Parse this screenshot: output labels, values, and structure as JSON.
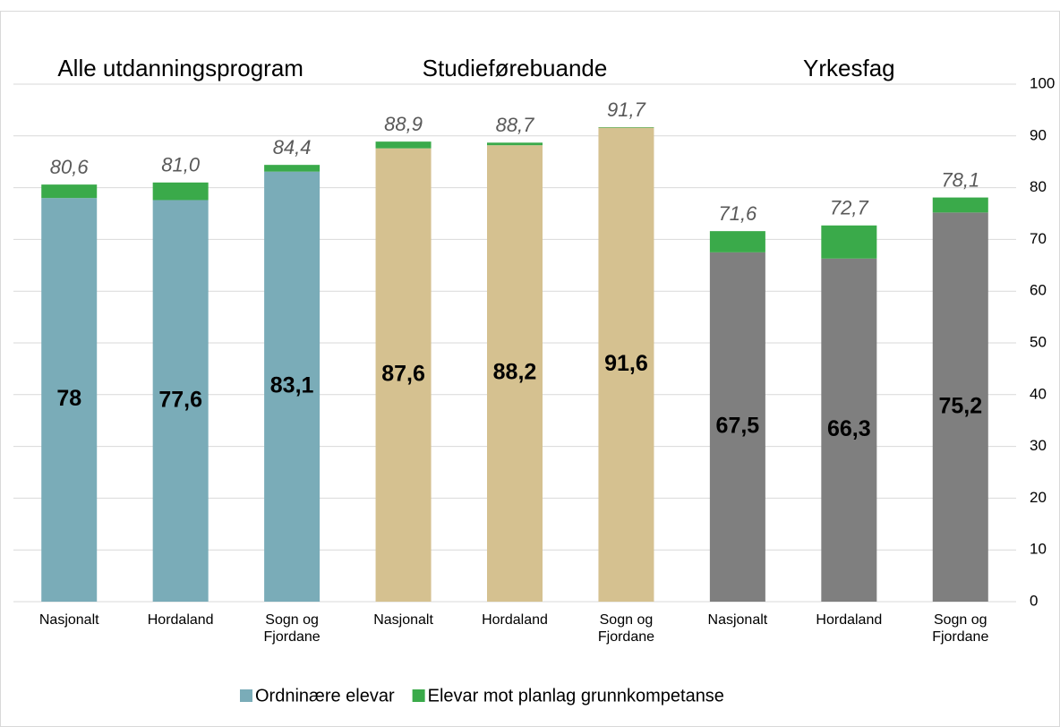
{
  "chart_data": {
    "type": "stacked_bar",
    "groups": [
      "Alle utdanningsprogram",
      "Studieførebuande",
      "Yrkesfag"
    ],
    "categories": [
      "Nasjonalt",
      "Hordaland",
      "Sogn og Fjordane",
      "Nasjonalt",
      "Hordaland",
      "Sogn og Fjordane",
      "Nasjonalt",
      "Hordaland",
      "Sogn og Fjordane"
    ],
    "series": [
      {
        "name": "Ordninære elevar",
        "color": "#7aacb8",
        "colors": [
          "#7aacb8",
          "#7aacb8",
          "#7aacb8",
          "#d5c190",
          "#d5c190",
          "#d5c190",
          "#7f7f7f",
          "#7f7f7f",
          "#7f7f7f"
        ],
        "values": [
          78,
          77.6,
          83.1,
          87.6,
          88.2,
          91.6,
          67.5,
          66.3,
          75.2
        ],
        "value_labels": [
          "78",
          "77,6",
          "83,1",
          "87,6",
          "88,2",
          "91,6",
          "67,5",
          "66,3",
          "75,2"
        ]
      },
      {
        "name": "Elevar mot planlag grunnkompetanse",
        "color": "#3aaa4a",
        "values": [
          2.6,
          3.4,
          1.3,
          1.3,
          0.5,
          0.1,
          4.1,
          6.4,
          2.9
        ]
      }
    ],
    "totals": {
      "values": [
        80.6,
        81.0,
        84.4,
        88.9,
        88.7,
        91.7,
        71.6,
        72.7,
        78.1
      ],
      "labels": [
        "80,6",
        "81,0",
        "84,4",
        "88,9",
        "88,7",
        "91,7",
        "71,6",
        "72,7",
        "78,1"
      ]
    },
    "ylim": [
      0,
      100
    ],
    "yticks": [
      0,
      10,
      20,
      30,
      40,
      50,
      60,
      70,
      80,
      90,
      100
    ],
    "grid": true,
    "legend": "bottom"
  }
}
